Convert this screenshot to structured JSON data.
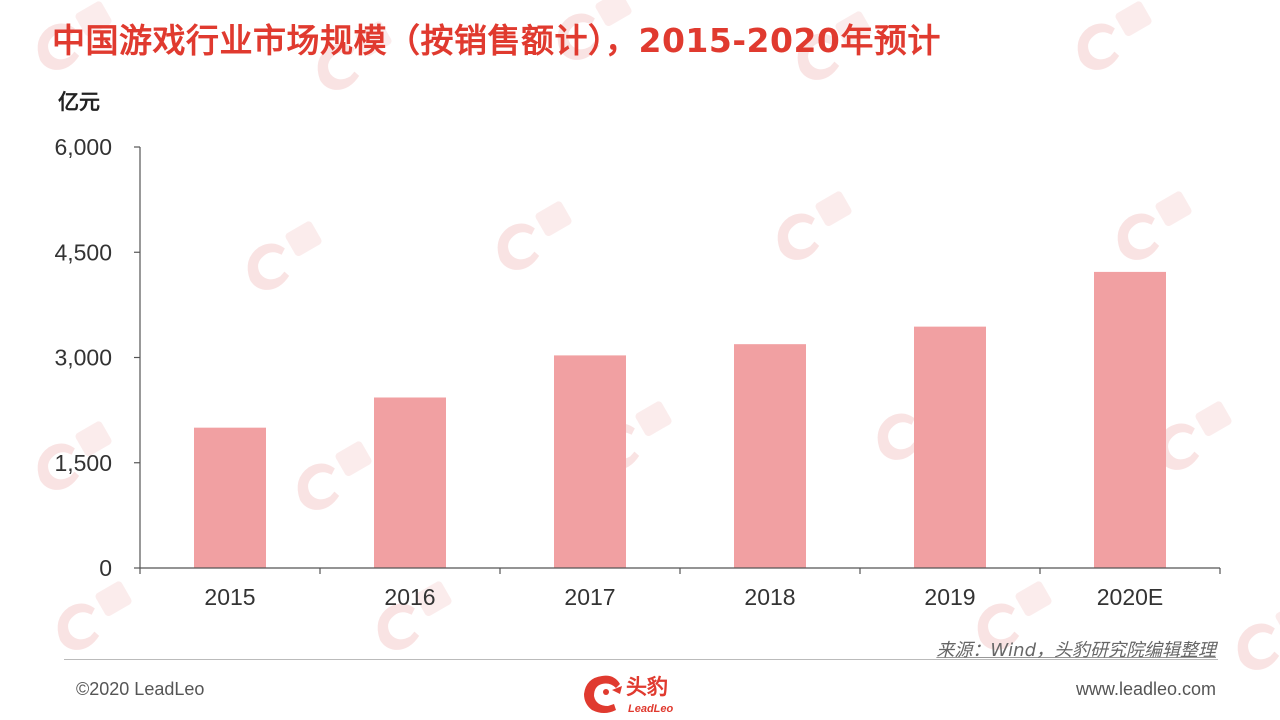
{
  "header": {
    "title": "中国游戏行业市场规模（按销售额计），2015-2020年预计",
    "unit": "亿元"
  },
  "chart_data": {
    "type": "bar",
    "categories": [
      "2015",
      "2016",
      "2017",
      "2018",
      "2019",
      "2020E"
    ],
    "values": [
      2000,
      2430,
      3030,
      3190,
      3440,
      4220
    ],
    "ylim": [
      0,
      6000
    ],
    "yticks": [
      "0",
      "1,500",
      "3,000",
      "4,500",
      "6,000"
    ],
    "ytick_values": [
      0,
      1500,
      3000,
      4500,
      6000
    ],
    "grid": false,
    "bar_color": "#f1a0a2",
    "axis_color": "#555555"
  },
  "footer": {
    "source": "来源：Wind，头豹研究院编辑整理",
    "copyright": "©2020 LeadLeo",
    "website": "www.leadleo.com",
    "logo_cn": "头豹",
    "logo_en": "LeadLeo"
  },
  "colors": {
    "title": "#e03a2f",
    "watermark": "#f5d5d5"
  }
}
